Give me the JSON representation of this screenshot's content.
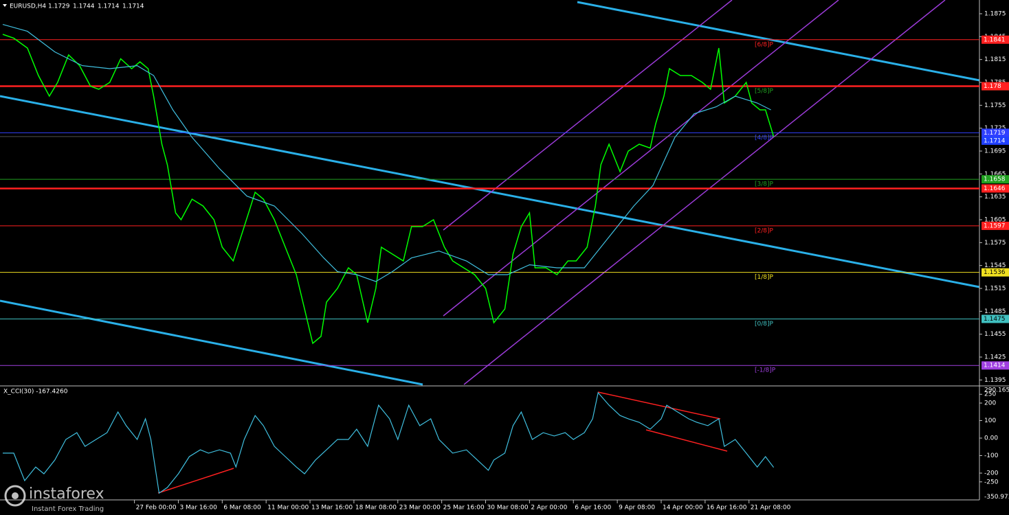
{
  "chart_data": [
    {
      "type": "line",
      "title": "EURUSD,H4",
      "ohlc": [
        1.1729,
        1.1744,
        1.1714,
        1.1714
      ],
      "xlim": [
        0,
        357
      ],
      "xticks": [
        {
          "value": 49,
          "label": "27 Feb 00:00"
        },
        {
          "value": 65,
          "label": "3 Mar 16:00"
        },
        {
          "value": 81,
          "label": "6 Mar 08:00"
        },
        {
          "value": 97,
          "label": "11 Mar 00:00"
        },
        {
          "value": 113,
          "label": "13 Mar 16:00"
        },
        {
          "value": 129,
          "label": "18 Mar 08:00"
        },
        {
          "value": 145,
          "label": "23 Mar 00:00"
        },
        {
          "value": 161,
          "label": "25 Mar 16:00"
        },
        {
          "value": 177,
          "label": "30 Mar 08:00"
        },
        {
          "value": 193,
          "label": "2 Apr 00:00"
        },
        {
          "value": 209,
          "label": "6 Apr 16:00"
        },
        {
          "value": 225,
          "label": "9 Apr 08:00"
        },
        {
          "value": 241,
          "label": "14 Apr 00:00"
        },
        {
          "value": 257,
          "label": "16 Apr 16:00"
        },
        {
          "value": 273,
          "label": "21 Apr 08:00"
        }
      ],
      "ylim": [
        1.1389,
        1.1893
      ],
      "yticks": [
        1.1875,
        1.1845,
        1.1815,
        1.1785,
        1.1755,
        1.1725,
        1.1695,
        1.1665,
        1.1635,
        1.1605,
        1.1575,
        1.1545,
        1.1515,
        1.1485,
        1.1455,
        1.1425,
        1.1395
      ],
      "series": [
        {
          "color": "#00ff00",
          "x": [
            1,
            5,
            10,
            14,
            18,
            21,
            25,
            29,
            33,
            36,
            40,
            44,
            48,
            51,
            54,
            56,
            59,
            61,
            64,
            66,
            70,
            74,
            78,
            81,
            85,
            89,
            93,
            96,
            100,
            104,
            108,
            111,
            114,
            117,
            119,
            123,
            127,
            130,
            134,
            137,
            139,
            143,
            147,
            150,
            154,
            158,
            162,
            165,
            169,
            173,
            177,
            180,
            184,
            187,
            190,
            193,
            195,
            199,
            203,
            207,
            210,
            214,
            217,
            219,
            222,
            226,
            229,
            233,
            237,
            239,
            242,
            244,
            248,
            252,
            256,
            259,
            262,
            264,
            268,
            272,
            274,
            277,
            279,
            282
          ],
          "values": [
            1.1848,
            1.1843,
            1.183,
            1.1794,
            1.1767,
            1.1785,
            1.1821,
            1.1807,
            1.178,
            1.1776,
            1.1785,
            1.1816,
            1.1803,
            1.1812,
            1.1803,
            1.1767,
            1.1704,
            1.1677,
            1.1614,
            1.1605,
            1.1632,
            1.1623,
            1.1605,
            1.1569,
            1.1551,
            1.1596,
            1.1641,
            1.1632,
            1.1605,
            1.1569,
            1.1533,
            1.1488,
            1.1443,
            1.1452,
            1.1497,
            1.1515,
            1.1542,
            1.1533,
            1.147,
            1.1515,
            1.1569,
            1.156,
            1.1551,
            1.1596,
            1.1596,
            1.1605,
            1.1569,
            1.1551,
            1.1542,
            1.1533,
            1.1515,
            1.147,
            1.1488,
            1.156,
            1.1596,
            1.1614,
            1.1542,
            1.1542,
            1.1533,
            1.1551,
            1.1551,
            1.1569,
            1.1623,
            1.1677,
            1.1704,
            1.1668,
            1.1695,
            1.1704,
            1.1699,
            1.1731,
            1.1767,
            1.1803,
            1.1794,
            1.1794,
            1.1785,
            1.1776,
            1.183,
            1.1758,
            1.1767,
            1.1785,
            1.1758,
            1.1749,
            1.1749,
            1.1714
          ]
        },
        {
          "color": "#40c0e0",
          "x": [
            1,
            10,
            20,
            30,
            40,
            50,
            56,
            63,
            70,
            80,
            90,
            100,
            110,
            118,
            123,
            130,
            137,
            143,
            150,
            160,
            170,
            178,
            185,
            193,
            203,
            213,
            221,
            231,
            238,
            246,
            253,
            261,
            268,
            276,
            281
          ],
          "values": [
            1.1861,
            1.1852,
            1.1825,
            1.1807,
            1.1803,
            1.1807,
            1.1794,
            1.1749,
            1.1713,
            1.1672,
            1.1636,
            1.1623,
            1.1587,
            1.1555,
            1.1537,
            1.1533,
            1.1524,
            1.1537,
            1.1555,
            1.1564,
            1.1551,
            1.1533,
            1.1533,
            1.1546,
            1.1542,
            1.1542,
            1.1578,
            1.1623,
            1.165,
            1.1713,
            1.1744,
            1.1753,
            1.1767,
            1.1758,
            1.1749
          ]
        }
      ],
      "levels": [
        {
          "name": "[6/8]P",
          "value": 1.1841,
          "color": "#ff2020"
        },
        {
          "name": "[5/8]P",
          "value": 1.178,
          "color": "#20a020"
        },
        {
          "name": "[4/8]P",
          "value": 1.1719,
          "color": "#3040ff"
        },
        {
          "name": "[3/8]P",
          "value": 1.1658,
          "color": "#20a020"
        },
        {
          "name": "[2/8]P",
          "value": 1.1597,
          "color": "#ff2020"
        },
        {
          "name": "[1/8]P",
          "value": 1.1536,
          "color": "#f0e020"
        },
        {
          "name": "[0/8]P",
          "value": 1.1475,
          "color": "#40c0c0"
        },
        {
          "name": "[-1/8]P",
          "value": 1.1414,
          "color": "#a040e0"
        }
      ],
      "hlines": [
        {
          "value": 1.178,
          "color": "#ff2020"
        },
        {
          "value": 1.1646,
          "color": "#ff2020"
        }
      ],
      "current_price": {
        "value": 1.1714,
        "color": "#2040ff"
      }
    },
    {
      "type": "line",
      "title": "X_CCI(30) -167.4260",
      "xlim": [
        0,
        357
      ],
      "ylim": [
        -350.973,
        290.1656
      ],
      "yticks": [
        250,
        200,
        100,
        {
          "value": 0,
          "label": "0.00"
        },
        -100,
        -200,
        -250
      ],
      "series": [
        {
          "color": "#40c0e0",
          "x": [
            1,
            5,
            9,
            13,
            16,
            20,
            24,
            28,
            31,
            35,
            39,
            43,
            46,
            50,
            53,
            55,
            58,
            61,
            65,
            69,
            73,
            76,
            80,
            84,
            86,
            89,
            93,
            96,
            100,
            104,
            108,
            111,
            115,
            119,
            123,
            127,
            130,
            134,
            138,
            142,
            145,
            149,
            153,
            157,
            160,
            165,
            170,
            174,
            178,
            180,
            184,
            187,
            190,
            194,
            198,
            202,
            206,
            209,
            213,
            216,
            218,
            222,
            226,
            229,
            233,
            237,
            241,
            243,
            247,
            251,
            254,
            258,
            262,
            264,
            268,
            272,
            276,
            279,
            282
          ],
          "values": [
            -86,
            -86,
            -243,
            -165,
            -204,
            -125,
            -8,
            31,
            -47,
            -8,
            31,
            149,
            71,
            -8,
            110,
            -8,
            -314,
            -282,
            -204,
            -106,
            -67,
            -86,
            -67,
            -86,
            -165,
            -8,
            129,
            71,
            -47,
            -106,
            -165,
            -204,
            -125,
            -67,
            -8,
            -8,
            51,
            -47,
            188,
            110,
            -8,
            188,
            71,
            110,
            -8,
            -86,
            -67,
            -125,
            -184,
            -125,
            -86,
            71,
            149,
            -8,
            31,
            12,
            31,
            -8,
            31,
            110,
            259,
            188,
            129,
            110,
            90,
            51,
            110,
            188,
            149,
            110,
            90,
            71,
            110,
            -47,
            -8,
            -86,
            -165,
            -106,
            -167.426
          ]
        }
      ]
    }
  ],
  "watermark": {
    "brand": "instaforex",
    "tagline": "Instant Forex Trading"
  }
}
